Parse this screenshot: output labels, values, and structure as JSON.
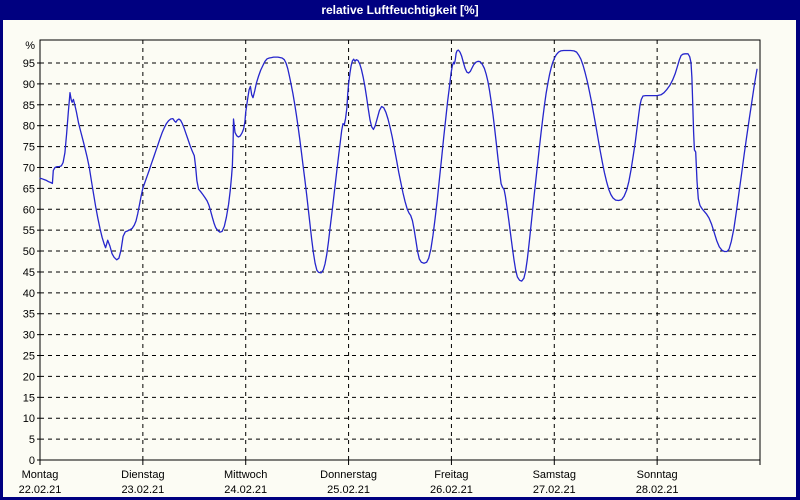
{
  "title": "relative Luftfeuchtigkeit [%]",
  "colors": {
    "titlebar_bg": "#000080",
    "titlebar_text": "#ffffff",
    "page_bg": "#fcfcf4",
    "page_border": "#000080",
    "line": "#2626cc",
    "grid": "#000000"
  },
  "chart_data": {
    "type": "line",
    "title": "relative Luftfeuchtigkeit [%]",
    "ylabel": "%",
    "ylim": [
      0,
      100
    ],
    "y_tick_step": 5,
    "y_tick_labels": [
      "0",
      "5",
      "10",
      "15",
      "20",
      "25",
      "30",
      "35",
      "40",
      "45",
      "50",
      "55",
      "60",
      "65",
      "70",
      "75",
      "80",
      "85",
      "90",
      "95"
    ],
    "grid": "dashed",
    "legend": "none",
    "x_unit": "hours_from_monday_00",
    "x_range_hours": [
      0,
      168
    ],
    "x_ticks": [
      {
        "t": 0,
        "label": "Montag",
        "date": "22.02.21"
      },
      {
        "t": 24,
        "label": "Dienstag",
        "date": "23.02.21"
      },
      {
        "t": 48,
        "label": "Mittwoch",
        "date": "24.02.21"
      },
      {
        "t": 72,
        "label": "Donnerstag",
        "date": "25.02.21"
      },
      {
        "t": 96,
        "label": "Freitag",
        "date": "26.02.21"
      },
      {
        "t": 120,
        "label": "Samstag",
        "date": "27.02.21"
      },
      {
        "t": 144,
        "label": "Sonntag",
        "date": "28.02.21"
      }
    ],
    "points": [
      [
        0,
        67.4
      ],
      [
        0.5,
        67.3
      ],
      [
        1,
        67.1
      ],
      [
        1.5,
        66.9
      ],
      [
        2,
        66.6
      ],
      [
        2.5,
        66.4
      ],
      [
        2.9,
        66.2
      ],
      [
        3.1,
        69.3
      ],
      [
        3.5,
        70
      ],
      [
        4,
        70.2
      ],
      [
        4.5,
        70.2
      ],
      [
        5,
        70.4
      ],
      [
        5.4,
        71.2
      ],
      [
        5.8,
        73.5
      ],
      [
        6.2,
        78
      ],
      [
        6.6,
        83.2
      ],
      [
        7,
        87.9
      ],
      [
        7.3,
        86.1
      ],
      [
        7.5,
        85.6
      ],
      [
        7.8,
        86.3
      ],
      [
        8.1,
        85.1
      ],
      [
        8.5,
        83.3
      ],
      [
        9,
        80.6
      ],
      [
        9.5,
        78.6
      ],
      [
        10,
        76.6
      ],
      [
        10.5,
        74.6
      ],
      [
        11,
        72.5
      ],
      [
        11.5,
        70
      ],
      [
        12,
        66.8
      ],
      [
        12.5,
        63.6
      ],
      [
        13,
        60.6
      ],
      [
        13.5,
        57.8
      ],
      [
        14,
        55.4
      ],
      [
        14.5,
        53.3
      ],
      [
        15,
        51.6
      ],
      [
        15.3,
        50.8
      ],
      [
        15.8,
        52.6
      ],
      [
        16.3,
        51.2
      ],
      [
        16.8,
        49.4
      ],
      [
        17.3,
        48.5
      ],
      [
        17.9,
        47.9
      ],
      [
        18.4,
        48.3
      ],
      [
        18.9,
        50.2
      ],
      [
        19.4,
        53.5
      ],
      [
        19.9,
        54.6
      ],
      [
        20.4,
        54.8
      ],
      [
        21,
        55.1
      ],
      [
        21.5,
        55.4
      ],
      [
        22,
        56.2
      ],
      [
        22.4,
        57.2
      ],
      [
        22.8,
        58.9
      ],
      [
        23.2,
        61
      ],
      [
        23.6,
        63.1
      ],
      [
        24,
        65.1
      ],
      [
        24.5,
        66.5
      ],
      [
        25,
        67.9
      ],
      [
        25.5,
        69.4
      ],
      [
        26,
        70.9
      ],
      [
        26.5,
        72.4
      ],
      [
        27,
        73.9
      ],
      [
        27.5,
        75.4
      ],
      [
        28,
        76.9
      ],
      [
        28.5,
        78.3
      ],
      [
        29,
        79.5
      ],
      [
        29.5,
        80.5
      ],
      [
        30,
        81.2
      ],
      [
        30.5,
        81.6
      ],
      [
        31,
        81.7
      ],
      [
        31.4,
        81.1
      ],
      [
        31.7,
        80.8
      ],
      [
        32,
        81.3
      ],
      [
        32.4,
        81.6
      ],
      [
        32.8,
        81.3
      ],
      [
        33.2,
        80.5
      ],
      [
        33.6,
        79.5
      ],
      [
        34,
        78.3
      ],
      [
        34.5,
        76.8
      ],
      [
        35,
        75.3
      ],
      [
        35.5,
        74
      ],
      [
        36,
        72.8
      ],
      [
        36.3,
        70.2
      ],
      [
        36.6,
        66.8
      ],
      [
        37,
        64.8
      ],
      [
        37.5,
        64.2
      ],
      [
        38,
        63.5
      ],
      [
        38.5,
        62.8
      ],
      [
        39,
        62
      ],
      [
        39.4,
        61
      ],
      [
        39.8,
        59.6
      ],
      [
        40.2,
        58.1
      ],
      [
        40.6,
        56.7
      ],
      [
        41,
        55.6
      ],
      [
        41.5,
        54.9
      ],
      [
        42,
        54.5
      ],
      [
        42.5,
        54.7
      ],
      [
        43,
        55.9
      ],
      [
        43.5,
        58.1
      ],
      [
        44,
        61.2
      ],
      [
        44.4,
        64.6
      ],
      [
        44.7,
        68
      ],
      [
        44.9,
        70.6
      ],
      [
        45.05,
        76
      ],
      [
        45.15,
        81.6
      ],
      [
        45.5,
        78.4
      ],
      [
        45.9,
        77.6
      ],
      [
        46.3,
        77.3
      ],
      [
        46.7,
        77.5
      ],
      [
        47.1,
        78.2
      ],
      [
        47.5,
        79.2
      ],
      [
        47.8,
        80.9
      ],
      [
        48,
        83.2
      ],
      [
        48.4,
        86
      ],
      [
        48.8,
        88.6
      ],
      [
        49.1,
        89.4
      ],
      [
        49.4,
        87.4
      ],
      [
        49.7,
        86.7
      ],
      [
        50.1,
        88.3
      ],
      [
        50.5,
        90.2
      ],
      [
        51,
        91.9
      ],
      [
        51.5,
        93.3
      ],
      [
        52,
        94.4
      ],
      [
        52.5,
        95.4
      ],
      [
        53,
        96
      ],
      [
        53.5,
        96.2
      ],
      [
        54,
        96.3
      ],
      [
        54.5,
        96.4
      ],
      [
        55.5,
        96.4
      ],
      [
        56.5,
        96.2
      ],
      [
        57,
        95.8
      ],
      [
        57.4,
        95
      ],
      [
        57.8,
        93.7
      ],
      [
        58.2,
        91.9
      ],
      [
        58.6,
        89.9
      ],
      [
        59,
        87.7
      ],
      [
        59.4,
        85.3
      ],
      [
        59.8,
        82.7
      ],
      [
        60.2,
        79.9
      ],
      [
        60.6,
        76.9
      ],
      [
        61,
        73.7
      ],
      [
        61.4,
        70.4
      ],
      [
        61.8,
        67
      ],
      [
        62.2,
        63.6
      ],
      [
        62.6,
        60
      ],
      [
        63,
        56.4
      ],
      [
        63.4,
        52.8
      ],
      [
        63.8,
        49.6
      ],
      [
        64.2,
        47.1
      ],
      [
        64.6,
        45.4
      ],
      [
        65,
        44.9
      ],
      [
        65.6,
        44.8
      ],
      [
        66.1,
        45.5
      ],
      [
        66.5,
        46.9
      ],
      [
        66.9,
        49.1
      ],
      [
        67.3,
        52.1
      ],
      [
        67.7,
        55.6
      ],
      [
        68.1,
        59.1
      ],
      [
        68.5,
        62.6
      ],
      [
        68.9,
        66.1
      ],
      [
        69.3,
        69.6
      ],
      [
        69.7,
        73
      ],
      [
        70.1,
        76.3
      ],
      [
        70.4,
        78.9
      ],
      [
        70.7,
        80.5
      ],
      [
        71,
        80.2
      ],
      [
        71.3,
        81.8
      ],
      [
        71.6,
        84.3
      ],
      [
        71.8,
        87.5
      ],
      [
        72,
        90
      ],
      [
        72.3,
        92.5
      ],
      [
        72.6,
        94.3
      ],
      [
        72.9,
        95.5
      ],
      [
        73.2,
        95.9
      ],
      [
        73.5,
        95.4
      ],
      [
        73.8,
        95.8
      ],
      [
        74.2,
        95.6
      ],
      [
        74.6,
        94.8
      ],
      [
        75,
        93.5
      ],
      [
        75.4,
        91.7
      ],
      [
        75.8,
        89.4
      ],
      [
        76.2,
        86.8
      ],
      [
        76.6,
        84
      ],
      [
        77,
        81.4
      ],
      [
        77.4,
        79.7
      ],
      [
        77.8,
        79.1
      ],
      [
        78.2,
        79.9
      ],
      [
        78.7,
        81.8
      ],
      [
        79.2,
        83.6
      ],
      [
        79.7,
        84.6
      ],
      [
        80.2,
        84.3
      ],
      [
        80.7,
        83.2
      ],
      [
        81.2,
        81.6
      ],
      [
        81.7,
        79.6
      ],
      [
        82.2,
        77.2
      ],
      [
        82.7,
        74.5
      ],
      [
        83.2,
        71.7
      ],
      [
        83.7,
        68.9
      ],
      [
        84.2,
        66.3
      ],
      [
        84.7,
        63.9
      ],
      [
        85.2,
        61.8
      ],
      [
        85.7,
        60
      ],
      [
        86.1,
        59.1
      ],
      [
        86.5,
        58.5
      ],
      [
        86.9,
        57.3
      ],
      [
        87.3,
        55.2
      ],
      [
        87.7,
        52.5
      ],
      [
        88.1,
        49.9
      ],
      [
        88.5,
        48.1
      ],
      [
        89,
        47.3
      ],
      [
        89.6,
        47.1
      ],
      [
        90.2,
        47.3
      ],
      [
        90.7,
        48.3
      ],
      [
        91.2,
        50.5
      ],
      [
        91.7,
        53.8
      ],
      [
        92.2,
        57.8
      ],
      [
        92.7,
        62.3
      ],
      [
        93.2,
        67.2
      ],
      [
        93.7,
        72.2
      ],
      [
        94.2,
        77.2
      ],
      [
        94.7,
        82
      ],
      [
        95.1,
        85.8
      ],
      [
        95.5,
        89
      ],
      [
        95.9,
        92.5
      ],
      [
        96.2,
        94.3
      ],
      [
        96.5,
        95.2
      ],
      [
        96.7,
        94.8
      ],
      [
        96.9,
        95.8
      ],
      [
        97.1,
        97.3
      ],
      [
        97.3,
        97.9
      ],
      [
        97.6,
        98.1
      ],
      [
        98,
        97.6
      ],
      [
        98.4,
        96.6
      ],
      [
        98.8,
        95.1
      ],
      [
        99.2,
        93.7
      ],
      [
        99.6,
        92.8
      ],
      [
        100,
        92.6
      ],
      [
        100.4,
        93
      ],
      [
        100.8,
        93.8
      ],
      [
        101.2,
        94.6
      ],
      [
        101.7,
        95.2
      ],
      [
        102.2,
        95.4
      ],
      [
        102.7,
        95.3
      ],
      [
        103.2,
        94.7
      ],
      [
        103.7,
        93.7
      ],
      [
        104.1,
        92.4
      ],
      [
        104.5,
        90.6
      ],
      [
        104.9,
        88.3
      ],
      [
        105.3,
        85.6
      ],
      [
        105.7,
        82.6
      ],
      [
        106.1,
        79.2
      ],
      [
        106.5,
        75.6
      ],
      [
        106.9,
        71.9
      ],
      [
        107.3,
        68.4
      ],
      [
        107.6,
        66.1
      ],
      [
        107.9,
        65.3
      ],
      [
        108.3,
        64.7
      ],
      [
        108.6,
        63.1
      ],
      [
        109,
        60.3
      ],
      [
        109.4,
        57.2
      ],
      [
        109.8,
        54
      ],
      [
        110.2,
        50.9
      ],
      [
        110.6,
        47.9
      ],
      [
        111,
        45.4
      ],
      [
        111.4,
        43.8
      ],
      [
        111.9,
        43
      ],
      [
        112.4,
        42.8
      ],
      [
        112.9,
        43.5
      ],
      [
        113.3,
        45.2
      ],
      [
        113.7,
        48
      ],
      [
        114.1,
        51.6
      ],
      [
        114.5,
        55.4
      ],
      [
        114.9,
        59.3
      ],
      [
        115.3,
        63.2
      ],
      [
        115.7,
        67.1
      ],
      [
        116.1,
        70.9
      ],
      [
        116.5,
        74.6
      ],
      [
        116.9,
        78.2
      ],
      [
        117.3,
        81.6
      ],
      [
        117.7,
        84.8
      ],
      [
        118.1,
        87.7
      ],
      [
        118.5,
        90.2
      ],
      [
        118.9,
        92.3
      ],
      [
        119.3,
        94
      ],
      [
        119.7,
        95.3
      ],
      [
        120.1,
        96.3
      ],
      [
        120.5,
        97
      ],
      [
        121,
        97.6
      ],
      [
        121.5,
        97.9
      ],
      [
        122.2,
        98
      ],
      [
        123,
        98
      ],
      [
        123.8,
        98
      ],
      [
        124.6,
        97.9
      ],
      [
        125.2,
        97.6
      ],
      [
        125.7,
        96.9
      ],
      [
        126.2,
        95.9
      ],
      [
        126.7,
        94.5
      ],
      [
        127.2,
        92.7
      ],
      [
        127.7,
        90.6
      ],
      [
        128.2,
        88.2
      ],
      [
        128.7,
        85.6
      ],
      [
        129.2,
        82.8
      ],
      [
        129.7,
        79.9
      ],
      [
        130.2,
        77
      ],
      [
        130.7,
        74.1
      ],
      [
        131.2,
        71.3
      ],
      [
        131.7,
        68.8
      ],
      [
        132.2,
        66.6
      ],
      [
        132.7,
        64.8
      ],
      [
        133.2,
        63.5
      ],
      [
        133.7,
        62.7
      ],
      [
        134.3,
        62.2
      ],
      [
        135,
        62.1
      ],
      [
        135.7,
        62.3
      ],
      [
        136.3,
        63.1
      ],
      [
        136.9,
        64.6
      ],
      [
        137.4,
        66.7
      ],
      [
        137.9,
        69.4
      ],
      [
        138.4,
        72.6
      ],
      [
        138.9,
        76.1
      ],
      [
        139.3,
        79.4
      ],
      [
        139.7,
        82.6
      ],
      [
        140,
        84.9
      ],
      [
        140.3,
        86.3
      ],
      [
        140.7,
        87.1
      ],
      [
        141.3,
        87.2
      ],
      [
        142.2,
        87.2
      ],
      [
        143.1,
        87.2
      ],
      [
        144,
        87.2
      ],
      [
        144.9,
        87.4
      ],
      [
        145.6,
        87.9
      ],
      [
        146.3,
        88.7
      ],
      [
        147,
        89.7
      ],
      [
        147.6,
        90.9
      ],
      [
        148.2,
        92.4
      ],
      [
        148.7,
        94.1
      ],
      [
        149.2,
        95.8
      ],
      [
        149.6,
        96.8
      ],
      [
        150,
        97.1
      ],
      [
        150.5,
        97.2
      ],
      [
        151.2,
        97.2
      ],
      [
        151.6,
        96.5
      ],
      [
        151.9,
        95.1
      ],
      [
        152.1,
        91.5
      ],
      [
        152.3,
        85.5
      ],
      [
        152.5,
        78.5
      ],
      [
        152.7,
        74.2
      ],
      [
        153,
        73.7
      ],
      [
        153.3,
        66.8
      ],
      [
        153.6,
        62.5
      ],
      [
        154,
        60.9
      ],
      [
        154.5,
        60.1
      ],
      [
        155,
        59.5
      ],
      [
        155.5,
        58.9
      ],
      [
        156.1,
        57.9
      ],
      [
        156.7,
        56.4
      ],
      [
        157.3,
        54.5
      ],
      [
        157.9,
        52.5
      ],
      [
        158.5,
        51
      ],
      [
        159.1,
        50.2
      ],
      [
        159.7,
        49.9
      ],
      [
        160.3,
        49.9
      ],
      [
        160.8,
        50.5
      ],
      [
        161.3,
        52.3
      ],
      [
        161.9,
        55.4
      ],
      [
        162.5,
        59.5
      ],
      [
        163.1,
        64
      ],
      [
        163.7,
        68.5
      ],
      [
        164.3,
        73
      ],
      [
        164.9,
        77.4
      ],
      [
        165.5,
        81.7
      ],
      [
        166.1,
        85.8
      ],
      [
        166.6,
        89.2
      ],
      [
        167,
        91.7
      ],
      [
        167.3,
        93.5
      ]
    ]
  }
}
